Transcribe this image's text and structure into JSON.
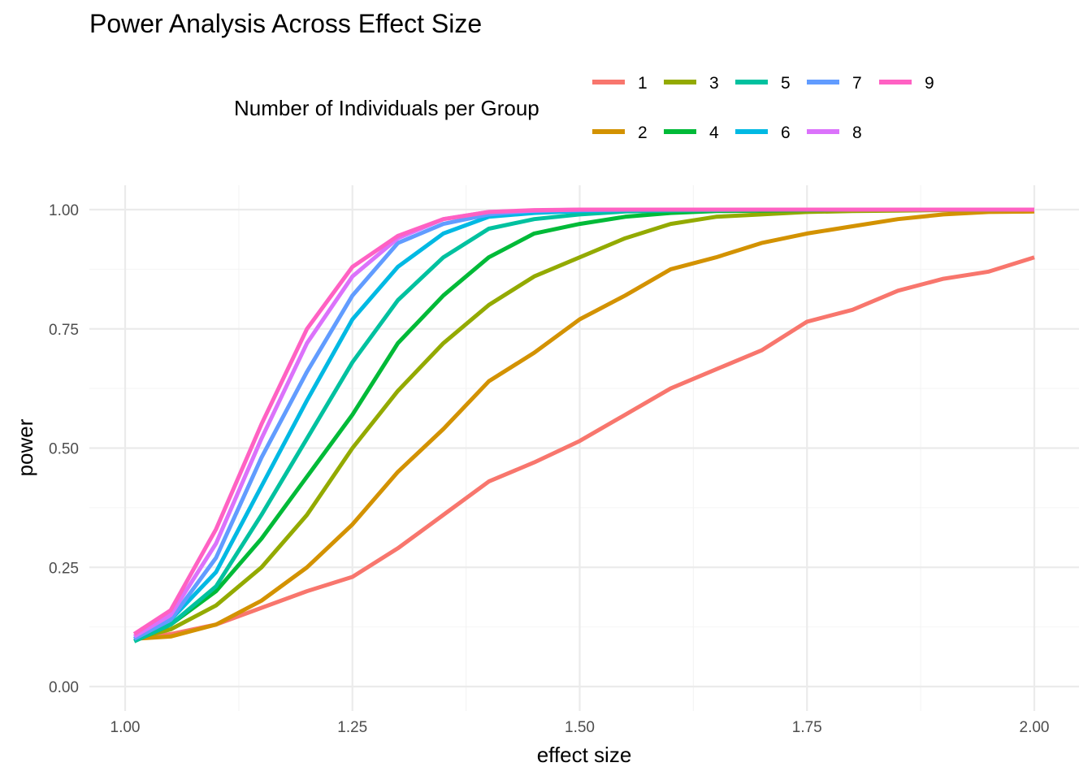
{
  "chart_data": {
    "type": "line",
    "title": "Power Analysis Across Effect Size",
    "xlabel": "effect size",
    "ylabel": "power",
    "xlim": [
      1.0,
      2.0
    ],
    "ylim": [
      0.0,
      1.0
    ],
    "x_ticks": [
      "1.00",
      "1.25",
      "1.50",
      "1.75",
      "2.00"
    ],
    "y_ticks": [
      "0.00",
      "0.25",
      "0.50",
      "0.75",
      "1.00"
    ],
    "grid": true,
    "legend": {
      "title": "Number of Individuals per Group",
      "position": "top",
      "entries": [
        "1",
        "2",
        "3",
        "4",
        "5",
        "6",
        "7",
        "8",
        "9"
      ]
    },
    "series": [
      {
        "name": "1",
        "color": "#F8766D",
        "x": [
          1.01,
          1.05,
          1.1,
          1.15,
          1.2,
          1.25,
          1.3,
          1.35,
          1.4,
          1.45,
          1.5,
          1.55,
          1.6,
          1.65,
          1.7,
          1.75,
          1.8,
          1.85,
          1.9,
          1.95,
          2.0
        ],
        "y": [
          0.1,
          0.11,
          0.13,
          0.165,
          0.2,
          0.23,
          0.29,
          0.36,
          0.43,
          0.47,
          0.515,
          0.57,
          0.625,
          0.665,
          0.705,
          0.765,
          0.79,
          0.83,
          0.855,
          0.87,
          0.9
        ]
      },
      {
        "name": "2",
        "color": "#D39200",
        "x": [
          1.01,
          1.05,
          1.1,
          1.15,
          1.2,
          1.25,
          1.3,
          1.35,
          1.4,
          1.45,
          1.5,
          1.55,
          1.6,
          1.65,
          1.7,
          1.75,
          1.8,
          1.85,
          1.9,
          1.95,
          2.0
        ],
        "y": [
          0.1,
          0.105,
          0.13,
          0.18,
          0.25,
          0.34,
          0.45,
          0.54,
          0.64,
          0.7,
          0.77,
          0.82,
          0.875,
          0.9,
          0.93,
          0.95,
          0.965,
          0.98,
          0.99,
          0.995,
          0.996
        ]
      },
      {
        "name": "3",
        "color": "#93AA00",
        "x": [
          1.01,
          1.05,
          1.1,
          1.15,
          1.2,
          1.25,
          1.3,
          1.35,
          1.4,
          1.45,
          1.5,
          1.55,
          1.6,
          1.65,
          1.7,
          1.75,
          1.8,
          1.85,
          1.9,
          1.95,
          2.0
        ],
        "y": [
          0.1,
          0.12,
          0.17,
          0.25,
          0.36,
          0.5,
          0.62,
          0.72,
          0.8,
          0.86,
          0.9,
          0.94,
          0.97,
          0.985,
          0.99,
          0.995,
          0.997,
          0.998,
          0.999,
          0.999,
          1.0
        ]
      },
      {
        "name": "4",
        "color": "#00BA38",
        "x": [
          1.01,
          1.05,
          1.1,
          1.15,
          1.2,
          1.25,
          1.3,
          1.35,
          1.4,
          1.45,
          1.5,
          1.55,
          1.6,
          1.65,
          1.7,
          1.75,
          1.8,
          1.85,
          1.9,
          1.95,
          2.0
        ],
        "y": [
          0.095,
          0.13,
          0.2,
          0.31,
          0.44,
          0.57,
          0.72,
          0.82,
          0.9,
          0.95,
          0.97,
          0.985,
          0.993,
          0.997,
          0.998,
          0.999,
          1.0,
          1.0,
          1.0,
          1.0,
          1.0
        ]
      },
      {
        "name": "5",
        "color": "#00C19F",
        "x": [
          1.01,
          1.05,
          1.1,
          1.15,
          1.2,
          1.25,
          1.3,
          1.35,
          1.4,
          1.45,
          1.5,
          1.55,
          1.6,
          1.65,
          1.7,
          1.75,
          1.8,
          1.85,
          1.9,
          1.95,
          2.0
        ],
        "y": [
          0.095,
          0.13,
          0.21,
          0.36,
          0.52,
          0.68,
          0.81,
          0.9,
          0.96,
          0.98,
          0.99,
          0.996,
          0.998,
          0.999,
          1.0,
          1.0,
          1.0,
          1.0,
          1.0,
          1.0,
          1.0
        ]
      },
      {
        "name": "6",
        "color": "#00B9E3",
        "x": [
          1.01,
          1.05,
          1.1,
          1.15,
          1.2,
          1.25,
          1.3,
          1.35,
          1.4,
          1.45,
          1.5,
          1.55,
          1.6,
          1.65,
          1.7,
          1.75,
          1.8,
          1.85,
          1.9,
          1.95,
          2.0
        ],
        "y": [
          0.1,
          0.14,
          0.24,
          0.42,
          0.6,
          0.77,
          0.88,
          0.95,
          0.985,
          0.993,
          0.997,
          0.999,
          1.0,
          1.0,
          1.0,
          1.0,
          1.0,
          1.0,
          1.0,
          1.0,
          1.0
        ]
      },
      {
        "name": "7",
        "color": "#619CFF",
        "x": [
          1.01,
          1.05,
          1.1,
          1.15,
          1.2,
          1.25,
          1.3,
          1.35,
          1.4,
          1.45,
          1.5,
          1.55,
          1.6,
          1.65,
          1.7,
          1.75,
          1.8,
          1.85,
          1.9,
          1.95,
          2.0
        ],
        "y": [
          0.1,
          0.14,
          0.27,
          0.48,
          0.66,
          0.82,
          0.93,
          0.97,
          0.99,
          0.998,
          0.999,
          1.0,
          1.0,
          1.0,
          1.0,
          1.0,
          1.0,
          1.0,
          1.0,
          1.0,
          1.0
        ]
      },
      {
        "name": "8",
        "color": "#DB72FB",
        "x": [
          1.01,
          1.05,
          1.1,
          1.15,
          1.2,
          1.25,
          1.3,
          1.35,
          1.4,
          1.45,
          1.5,
          1.55,
          1.6,
          1.65,
          1.7,
          1.75,
          1.8,
          1.85,
          1.9,
          1.95,
          2.0
        ],
        "y": [
          0.105,
          0.15,
          0.3,
          0.52,
          0.72,
          0.86,
          0.94,
          0.98,
          0.995,
          0.998,
          1.0,
          1.0,
          1.0,
          1.0,
          1.0,
          1.0,
          1.0,
          1.0,
          1.0,
          1.0,
          1.0
        ]
      },
      {
        "name": "9",
        "color": "#FF61C3",
        "x": [
          1.01,
          1.05,
          1.1,
          1.15,
          1.2,
          1.25,
          1.3,
          1.35,
          1.4,
          1.45,
          1.5,
          1.55,
          1.6,
          1.65,
          1.7,
          1.75,
          1.8,
          1.85,
          1.9,
          1.95,
          2.0
        ],
        "y": [
          0.11,
          0.16,
          0.33,
          0.55,
          0.75,
          0.88,
          0.945,
          0.98,
          0.995,
          0.999,
          1.0,
          1.0,
          1.0,
          1.0,
          1.0,
          1.0,
          1.0,
          1.0,
          1.0,
          1.0,
          1.0
        ]
      }
    ]
  }
}
